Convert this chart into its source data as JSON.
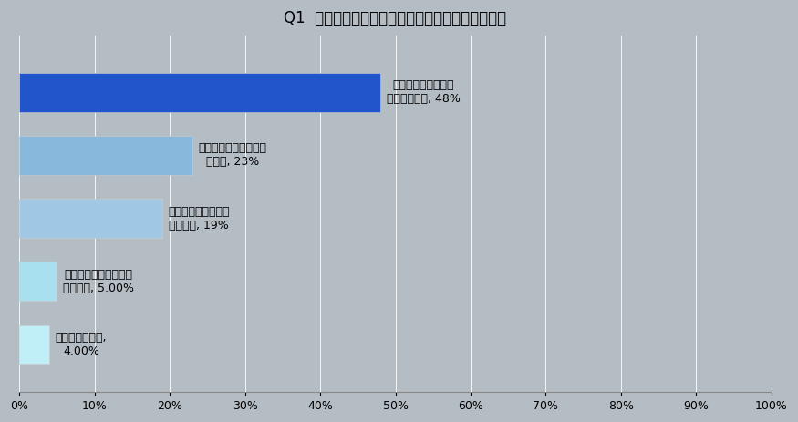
{
  "title": "Q1  仏壇処分を検討している理由を教えてください",
  "categories": [
    "継承者がいないので\n処分を考えた, 48%",
    "親が亡くなり必要なく\nなった, 23%",
    "仏壇の手入れが困難\nになった, 19%",
    "施設に入るので持って\n行けない, 5.00%",
    "仏壇の買い替え,\n4.00%"
  ],
  "values": [
    48,
    23,
    19,
    5,
    4
  ],
  "bar_colors": [
    "#2255cc",
    "#88b8dc",
    "#a0c8e4",
    "#a8e0f0",
    "#c0eff8"
  ],
  "background_color": "#b4bcc4",
  "plot_bg_color": "#b4bcc4",
  "xlim": [
    0,
    100
  ],
  "xticks": [
    0,
    10,
    20,
    30,
    40,
    50,
    60,
    70,
    80,
    90,
    100
  ],
  "xtick_labels": [
    "0%",
    "10%",
    "20%",
    "30%",
    "40%",
    "50%",
    "60%",
    "70%",
    "80%",
    "90%",
    "100%"
  ],
  "title_fontsize": 12,
  "label_fontsize": 9,
  "tick_fontsize": 9,
  "bar_height": 0.62
}
